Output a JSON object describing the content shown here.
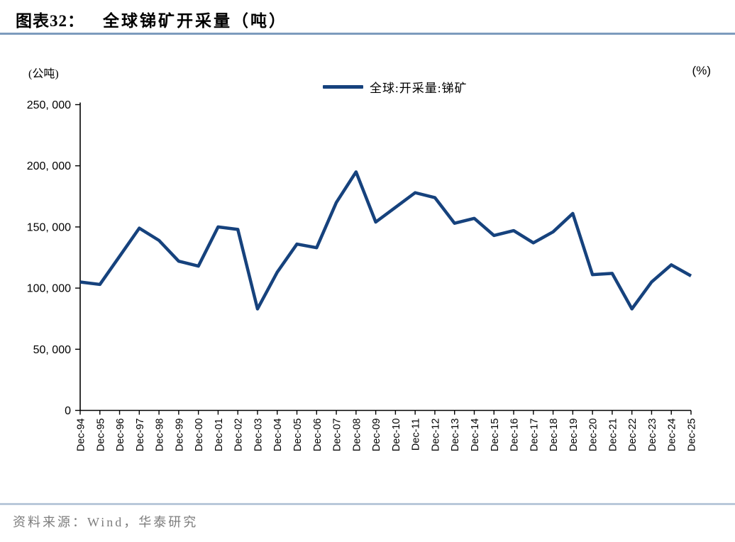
{
  "header": {
    "title_prefix": "图表32：",
    "title_main": "全球锑矿开采量（吨）"
  },
  "units": {
    "left": "(公吨)",
    "right": "(%)"
  },
  "chart_data": {
    "type": "line",
    "title": "图表32： 全球锑矿开采量（吨）",
    "legend": [
      {
        "name": "全球:开采量:锑矿",
        "color": "#16427d"
      }
    ],
    "legend_position": "top-center",
    "grid": false,
    "xlabel": "",
    "ylabel": "公吨",
    "ylim": [
      0,
      250000
    ],
    "ytick_step": 50000,
    "ytick_labels": [
      "0",
      "50, 000",
      "100, 000",
      "150, 000",
      "200, 000",
      "250, 000"
    ],
    "x": [
      "Dec-94",
      "Dec-95",
      "Dec-96",
      "Dec-97",
      "Dec-98",
      "Dec-99",
      "Dec-00",
      "Dec-01",
      "Dec-02",
      "Dec-03",
      "Dec-04",
      "Dec-05",
      "Dec-06",
      "Dec-07",
      "Dec-08",
      "Dec-09",
      "Dec-10",
      "Dec-11",
      "Dec-12",
      "Dec-13",
      "Dec-14",
      "Dec-15",
      "Dec-16",
      "Dec-17",
      "Dec-18",
      "Dec-19",
      "Dec-20",
      "Dec-21",
      "Dec-22",
      "Dec-23",
      "Dec-24",
      "Dec-25"
    ],
    "series": [
      {
        "name": "全球:开采量:锑矿",
        "color": "#16427d",
        "values": [
          105000,
          103000,
          126000,
          149000,
          139000,
          122000,
          118000,
          150000,
          148000,
          83000,
          113000,
          136000,
          133000,
          170000,
          195000,
          154000,
          166000,
          178000,
          174000,
          153000,
          157000,
          143000,
          147000,
          137000,
          146000,
          161000,
          111000,
          112000,
          83000,
          105000,
          119000,
          110000
        ]
      }
    ]
  },
  "footer": {
    "source": "资料来源：Wind，华泰研究"
  }
}
